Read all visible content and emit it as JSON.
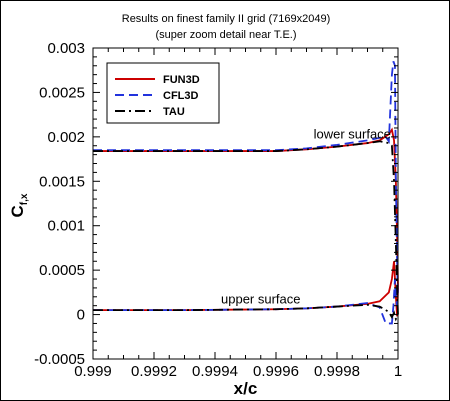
{
  "chart_data": {
    "type": "line",
    "title": "Results on finest family II grid (7169x2049)",
    "subtitle": "(super zoom detail near T.E.)",
    "xlabel": "x/c",
    "ylabel_main": "C",
    "ylabel_sub": "f,x",
    "xlim": [
      0.999,
      1.0
    ],
    "ylim": [
      -0.0005,
      0.003
    ],
    "x_ticks": [
      0.999,
      0.9992,
      0.9994,
      0.9996,
      0.9998,
      1.0
    ],
    "x_tick_labels": [
      "0.999",
      "0.9992",
      "0.9994",
      "0.9996",
      "0.9998",
      "1"
    ],
    "y_ticks": [
      -0.0005,
      0,
      0.0005,
      0.001,
      0.0015,
      0.002,
      0.0025,
      0.003
    ],
    "y_tick_labels": [
      "-0.0005",
      "0",
      "0.0005",
      "0.001",
      "0.0015",
      "0.002",
      "0.0025",
      "0.003"
    ],
    "grid": false,
    "legend_position": "top-left",
    "annotations": [
      {
        "text": "lower surface",
        "x": 0.99985,
        "y": 0.00198
      },
      {
        "text": "upper surface",
        "x": 0.99955,
        "y": 0.000125
      }
    ],
    "series": [
      {
        "name": "FUN3D",
        "color": "#cc0000",
        "dash": "solid",
        "lower": [
          [
            0.999,
            0.00184
          ],
          [
            0.9993,
            0.00184
          ],
          [
            0.9996,
            0.00184
          ],
          [
            0.9997,
            0.00186
          ],
          [
            0.9998,
            0.00189
          ],
          [
            0.9999,
            0.00193
          ],
          [
            0.99994,
            0.00196
          ],
          [
            0.99997,
            0.00203
          ],
          [
            0.99998,
            0.00208
          ],
          [
            0.999987,
            0.00196
          ],
          [
            0.999993,
            0.0015
          ],
          [
            0.999997,
            0.0009
          ],
          [
            1.0,
            0.0003
          ]
        ],
        "upper": [
          [
            0.999,
            5e-05
          ],
          [
            0.9993,
            5e-05
          ],
          [
            0.9996,
            6e-05
          ],
          [
            0.9997,
            7e-05
          ],
          [
            0.9998,
            9e-05
          ],
          [
            0.9999,
            0.00012
          ],
          [
            0.99994,
            0.00015
          ],
          [
            0.99997,
            0.00025
          ],
          [
            0.99998,
            0.0004
          ],
          [
            0.999987,
            0.0006
          ],
          [
            0.999993,
            0.0002
          ],
          [
            0.999997,
            -2e-05
          ],
          [
            1.0,
            0.0003
          ]
        ]
      },
      {
        "name": "CFL3D",
        "color": "#2233dd",
        "dash": "dashed",
        "lower": [
          [
            0.999,
            0.00185
          ],
          [
            0.9993,
            0.00185
          ],
          [
            0.9996,
            0.00185
          ],
          [
            0.9997,
            0.00187
          ],
          [
            0.9998,
            0.00191
          ],
          [
            0.9999,
            0.00196
          ],
          [
            0.99994,
            0.00199
          ],
          [
            0.99996,
            0.002
          ],
          [
            0.99997,
            0.00195
          ],
          [
            0.99998,
            0.0027
          ],
          [
            0.999985,
            0.00285
          ],
          [
            0.99999,
            0.0028
          ],
          [
            0.999993,
            0.0015
          ],
          [
            0.999997,
            0.0006
          ],
          [
            1.0,
            0.0002
          ]
        ],
        "upper": [
          [
            0.999,
            5e-05
          ],
          [
            0.9993,
            5e-05
          ],
          [
            0.9996,
            6e-05
          ],
          [
            0.9997,
            7e-05
          ],
          [
            0.9998,
            9e-05
          ],
          [
            0.9999,
            0.00013
          ],
          [
            0.99994,
            8e-05
          ],
          [
            0.99996,
            -0.0001
          ],
          [
            0.99998,
            -0.0001
          ],
          [
            0.999985,
            0.0001
          ],
          [
            0.99999,
            0.0004
          ],
          [
            0.999993,
            0.0002
          ],
          [
            0.999997,
            0.0001
          ],
          [
            1.0,
            0.0002
          ]
        ]
      },
      {
        "name": "TAU",
        "color": "#000000",
        "dash": "dashdot",
        "lower": [
          [
            0.999,
            0.00184
          ],
          [
            0.9993,
            0.00184
          ],
          [
            0.9996,
            0.00184
          ],
          [
            0.9997,
            0.00186
          ],
          [
            0.9998,
            0.00189
          ],
          [
            0.9999,
            0.00193
          ],
          [
            0.99994,
            0.00195
          ],
          [
            0.99997,
            0.00193
          ],
          [
            0.99998,
            0.0019
          ],
          [
            0.999987,
            0.0015
          ],
          [
            0.999993,
            0.0008
          ],
          [
            0.999997,
            0.0003
          ],
          [
            1.0,
            0.0
          ]
        ],
        "upper": [
          [
            0.999,
            5e-05
          ],
          [
            0.9993,
            5e-05
          ],
          [
            0.9996,
            6e-05
          ],
          [
            0.9997,
            7e-05
          ],
          [
            0.9998,
            9e-05
          ],
          [
            0.9999,
            0.00011
          ],
          [
            0.99994,
            9e-05
          ],
          [
            0.99997,
            3e-05
          ],
          [
            0.99998,
            -3e-05
          ],
          [
            0.999987,
            2e-05
          ],
          [
            0.999993,
            -5e-05
          ],
          [
            1.0,
            0.0
          ]
        ]
      }
    ]
  }
}
